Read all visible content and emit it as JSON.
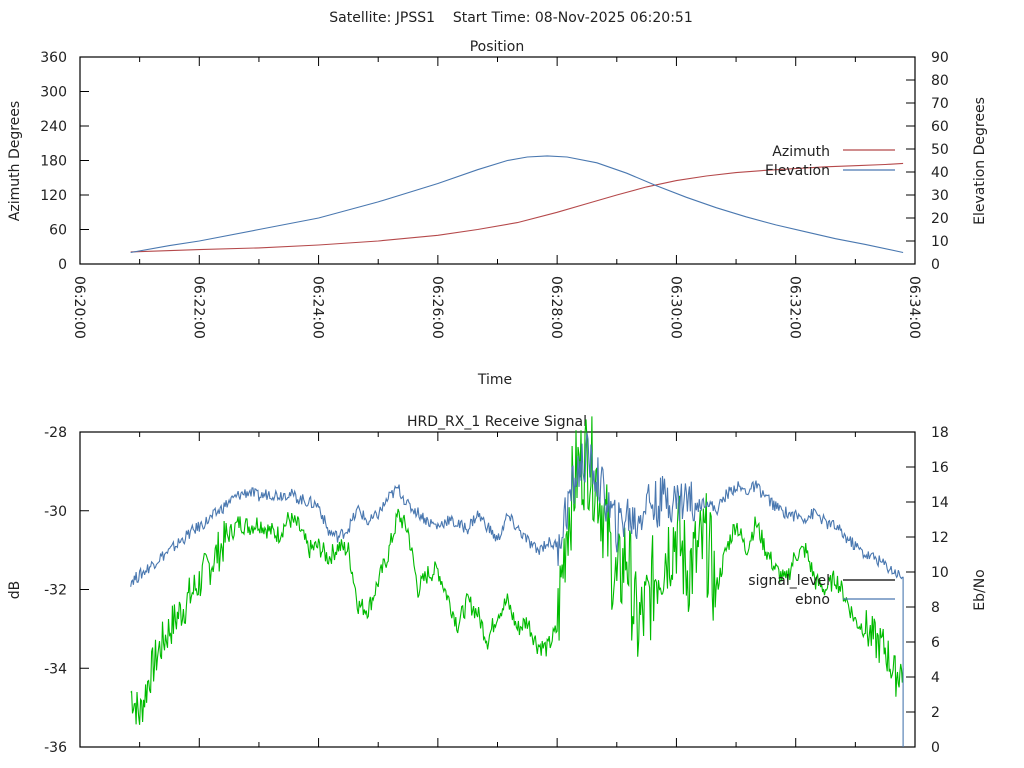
{
  "header": {
    "title": "Satellite: JPSS1    Start Time: 08-Nov-2025 06:20:51"
  },
  "chart_data": [
    {
      "type": "line",
      "title": "Position",
      "xlabel": "Time",
      "ylabel": "Azimuth Degrees",
      "y2label": "Elevation Degrees",
      "xlim_seconds_from_0620": [
        0,
        840
      ],
      "x_tick_labels": [
        "06:20:00",
        "06:22:00",
        "06:24:00",
        "06:26:00",
        "06:28:00",
        "06:30:00",
        "06:32:00",
        "06:34:00"
      ],
      "ylim": [
        0,
        360
      ],
      "y_tick_labels": [
        "0",
        "60",
        "120",
        "180",
        "240",
        "300",
        "360"
      ],
      "y2lim": [
        0,
        90
      ],
      "y2_tick_labels": [
        "0",
        "10",
        "20",
        "30",
        "40",
        "50",
        "60",
        "70",
        "80",
        "90"
      ],
      "grid": false,
      "legend_position": "right",
      "series": [
        {
          "name": "Azimuth",
          "axis": "y",
          "color": "#b5494b",
          "x": [
            51,
            120,
            180,
            240,
            300,
            360,
            400,
            440,
            480,
            510,
            540,
            570,
            600,
            630,
            660,
            690,
            720,
            750,
            780,
            810,
            828
          ],
          "values": [
            21,
            25,
            28,
            33,
            40,
            50,
            60,
            72,
            90,
            105,
            120,
            134,
            145,
            153,
            159,
            163,
            166,
            169,
            171,
            173,
            175
          ]
        },
        {
          "name": "Elevation",
          "axis": "y2",
          "color": "#4a78b0",
          "x": [
            51,
            90,
            120,
            180,
            240,
            300,
            360,
            400,
            430,
            450,
            470,
            490,
            520,
            550,
            580,
            610,
            640,
            670,
            700,
            730,
            760,
            790,
            828
          ],
          "values": [
            5,
            8,
            10,
            15,
            20,
            27,
            35,
            41,
            45,
            46.5,
            47,
            46.5,
            44,
            39.5,
            34,
            29,
            24.5,
            20.5,
            17,
            14,
            11,
            8.5,
            5
          ]
        }
      ]
    },
    {
      "type": "line",
      "title": "HRD_RX_1 Receive Signal",
      "xlabel": "",
      "ylabel": "dB",
      "y2label": "Eb/No",
      "xlim_seconds_from_0620": [
        0,
        840
      ],
      "ylim": [
        -36,
        -28
      ],
      "y_tick_labels": [
        "-36",
        "-34",
        "-32",
        "-30",
        "-28"
      ],
      "y2lim": [
        0,
        18
      ],
      "y2_tick_labels": [
        "0",
        "2",
        "4",
        "6",
        "8",
        "10",
        "12",
        "14",
        "16",
        "18"
      ],
      "grid": false,
      "legend_position": "right",
      "series": [
        {
          "name": "signal_level",
          "axis": "y",
          "color": "#000000",
          "legend_color": "#000000",
          "plot_color": "#00bb00",
          "x": [
            51,
            60,
            70,
            80,
            90,
            100,
            110,
            120,
            130,
            140,
            150,
            160,
            170,
            180,
            190,
            200,
            210,
            220,
            230,
            240,
            250,
            260,
            270,
            280,
            290,
            300,
            310,
            320,
            330,
            340,
            350,
            360,
            370,
            380,
            390,
            400,
            410,
            420,
            430,
            440,
            450,
            460,
            470,
            480,
            490,
            500,
            510,
            520,
            530,
            540,
            550,
            560,
            570,
            580,
            590,
            600,
            610,
            620,
            630,
            640,
            650,
            660,
            670,
            680,
            690,
            700,
            710,
            720,
            730,
            740,
            750,
            760,
            770,
            780,
            790,
            800,
            810,
            820,
            828
          ],
          "values": [
            -34.6,
            -35.2,
            -34.2,
            -33.5,
            -33.0,
            -32.6,
            -32.2,
            -31.8,
            -31.4,
            -31.0,
            -30.6,
            -30.3,
            -30.4,
            -30.3,
            -30.5,
            -30.6,
            -30.2,
            -30.4,
            -31.0,
            -30.9,
            -31.2,
            -30.9,
            -31.0,
            -32.4,
            -32.5,
            -31.8,
            -31.1,
            -30.1,
            -30.5,
            -32.0,
            -31.6,
            -31.5,
            -32.2,
            -32.9,
            -32.3,
            -32.6,
            -33.3,
            -32.6,
            -32.3,
            -33.0,
            -32.8,
            -33.4,
            -33.5,
            -33.0,
            -30.2,
            -29.0,
            -28.6,
            -29.2,
            -30.5,
            -32.0,
            -31.0,
            -33.0,
            -32.5,
            -31.5,
            -31.0,
            -30.5,
            -31.5,
            -31.2,
            -30.8,
            -32.0,
            -31.0,
            -30.3,
            -31.0,
            -30.3,
            -31.0,
            -31.5,
            -31.8,
            -31.1,
            -31.0,
            -31.8,
            -32.0,
            -31.7,
            -32.2,
            -32.8,
            -33.0,
            -33.3,
            -33.5,
            -34.2,
            -34.0
          ]
        },
        {
          "name": "ebno",
          "axis": "y2",
          "color": "#4a78b0",
          "x": [
            51,
            60,
            70,
            80,
            90,
            100,
            110,
            120,
            130,
            140,
            150,
            160,
            170,
            180,
            190,
            200,
            210,
            220,
            230,
            240,
            250,
            260,
            270,
            280,
            290,
            300,
            310,
            320,
            330,
            340,
            350,
            360,
            370,
            380,
            390,
            400,
            410,
            420,
            430,
            440,
            450,
            460,
            470,
            480,
            490,
            500,
            510,
            520,
            530,
            540,
            550,
            560,
            570,
            580,
            590,
            600,
            610,
            620,
            630,
            640,
            650,
            660,
            670,
            680,
            690,
            700,
            710,
            720,
            730,
            740,
            750,
            760,
            770,
            780,
            790,
            800,
            810,
            820,
            828
          ],
          "values": [
            9.5,
            9.8,
            10.3,
            10.8,
            11.2,
            11.7,
            12.2,
            12.6,
            13.0,
            13.5,
            14.0,
            14.4,
            14.6,
            14.3,
            14.5,
            14.4,
            14.5,
            14.2,
            14.0,
            13.8,
            12.3,
            12.0,
            12.5,
            13.6,
            12.8,
            13.3,
            14.2,
            14.8,
            13.8,
            13.4,
            12.9,
            12.6,
            13.0,
            12.7,
            12.5,
            13.3,
            12.6,
            11.8,
            13.2,
            12.5,
            11.8,
            11.2,
            11.7,
            11.5,
            13.7,
            15.6,
            16.6,
            15.4,
            14.0,
            12.5,
            13.3,
            12.8,
            14.2,
            13.8,
            14.4,
            14.0,
            14.3,
            13.7,
            14.1,
            13.5,
            14.4,
            14.9,
            14.6,
            14.9,
            14.3,
            13.7,
            13.4,
            13.2,
            13.1,
            13.4,
            12.8,
            12.6,
            12.0,
            11.5,
            11.0,
            10.8,
            10.4,
            10.0,
            9.7
          ]
        }
      ]
    }
  ]
}
